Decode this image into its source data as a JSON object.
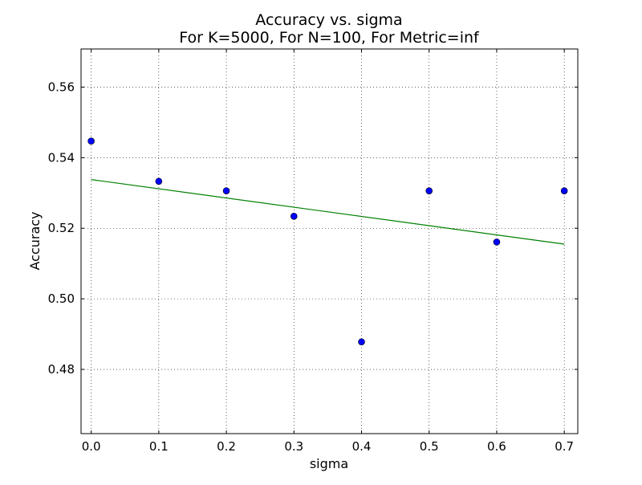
{
  "chart_data": {
    "type": "scatter",
    "title": "Accuracy vs. sigma",
    "subtitle": "For K=5000, For N=100, For Metric=inf",
    "xlabel": "sigma",
    "ylabel": "Accuracy",
    "xlim": [
      -0.015,
      0.72
    ],
    "ylim": [
      0.4618,
      0.5708
    ],
    "grid": true,
    "x_ticks": [
      0.0,
      0.1,
      0.2,
      0.3,
      0.4,
      0.5,
      0.6,
      0.7
    ],
    "x_tick_labels": [
      "0.0",
      "0.1",
      "0.2",
      "0.3",
      "0.4",
      "0.5",
      "0.6",
      "0.7"
    ],
    "y_ticks": [
      0.48,
      0.5,
      0.52,
      0.54,
      0.56
    ],
    "y_tick_labels": [
      "0.48",
      "0.50",
      "0.52",
      "0.54",
      "0.56"
    ],
    "series": [
      {
        "kind": "points",
        "color": "#0000ff",
        "x": [
          0.0,
          0.1,
          0.2,
          0.3,
          0.4,
          0.5,
          0.6,
          0.7
        ],
        "y": [
          0.5447,
          0.5333,
          0.5306,
          0.5234,
          0.4878,
          0.5306,
          0.5161,
          0.5306
        ]
      },
      {
        "kind": "fit-line",
        "color": "#008000",
        "x": [
          0.0,
          0.7
        ],
        "y": [
          0.5338,
          0.5155
        ]
      }
    ]
  }
}
